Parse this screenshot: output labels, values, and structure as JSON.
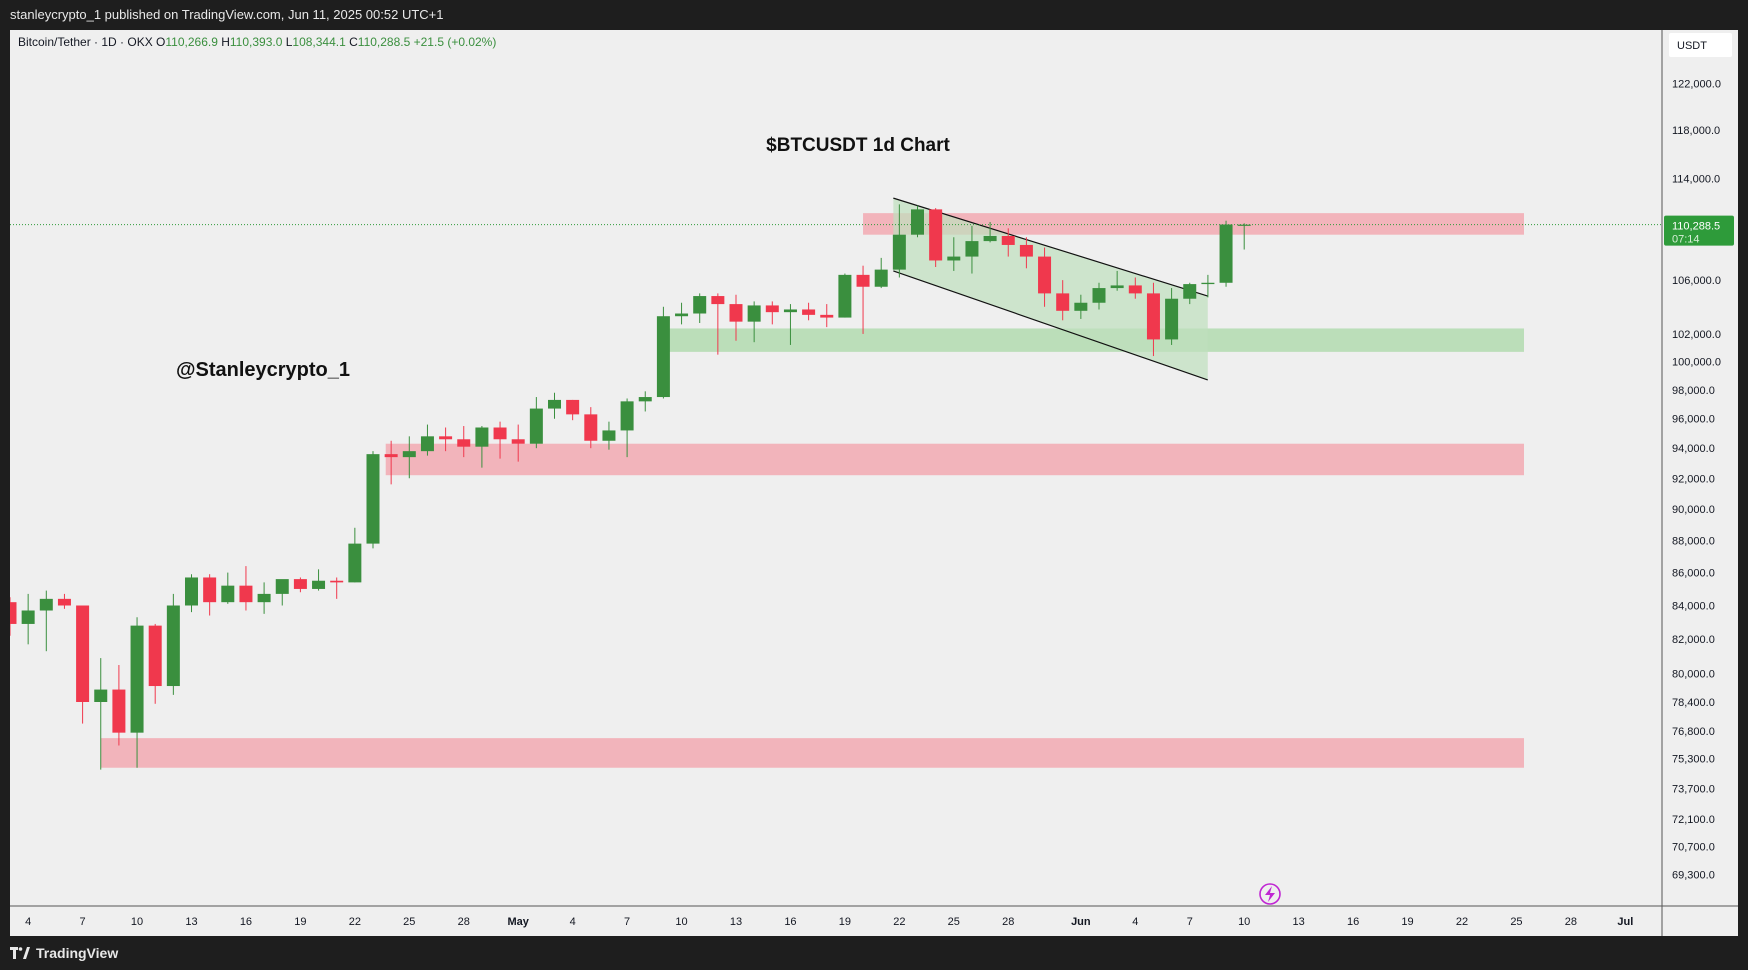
{
  "header": {
    "published_text": "stanleycrypto_1 published on TradingView.com, Jun 11, 2025 00:52 UTC+1"
  },
  "legend": {
    "symbol": "Bitcoin/Tether · 1D · OKX",
    "o_label": "O",
    "o_value": "110,266.9",
    "h_label": "H",
    "h_value": "110,393.0",
    "l_label": "L",
    "l_value": "108,344.1",
    "c_label": "C",
    "c_value": "110,288.5",
    "change": "+21.5 (+0.02%)"
  },
  "annotations": {
    "title": "$BTCUSDT 1d Chart",
    "author": "@Stanleycrypto_1"
  },
  "price_scale": {
    "currency": "USDT",
    "last_price_label": "110,288.5",
    "countdown": "07:14"
  },
  "footer": {
    "brand": "TradingView"
  },
  "icons": {
    "flash": "lightning-icon",
    "logo": "tradingview-logo-icon"
  },
  "colors": {
    "up": "#3a8f3e",
    "down": "#f0384d",
    "resistance_zone": "#f2a9b2",
    "support_zone": "#a9d8a7",
    "channel": "#bfe0bd",
    "last_price": "#2e9b3a"
  },
  "chart_data": {
    "type": "candlestick",
    "symbol": "BTCUSDT",
    "interval": "1D",
    "title": "$BTCUSDT 1d Chart",
    "x_tick_labels": [
      "4",
      "7",
      "10",
      "13",
      "16",
      "19",
      "22",
      "25",
      "28",
      "May",
      "4",
      "7",
      "10",
      "13",
      "16",
      "19",
      "22",
      "25",
      "28",
      "Jun",
      "4",
      "7",
      "10",
      "13",
      "16",
      "19",
      "22",
      "25",
      "28",
      "Jul"
    ],
    "y_tick_labels": [
      "122,000.0",
      "118,000.0",
      "114,000.0",
      "106,000.0",
      "102,000.0",
      "100,000.0",
      "98,000.0",
      "96,000.0",
      "94,000.0",
      "92,000.0",
      "90,000.0",
      "88,000.0",
      "86,000.0",
      "84,000.0",
      "82,000.0",
      "80,000.0",
      "78,400.0",
      "76,800.0",
      "75,300.0",
      "73,700.0",
      "72,100.0",
      "70,700.0",
      "69,300.0"
    ],
    "y_ticks": [
      122000,
      118000,
      114000,
      106000,
      102000,
      100000,
      98000,
      96000,
      94000,
      92000,
      90000,
      88000,
      86000,
      84000,
      82000,
      80000,
      78400,
      76800,
      75300,
      73700,
      72100,
      70700,
      69300
    ],
    "scale": "log",
    "start_date": "2025-04-03",
    "candles": [
      {
        "date": "2025-04-03",
        "o": 84200,
        "h": 84500,
        "l": 82200,
        "c": 82900
      },
      {
        "date": "2025-04-04",
        "o": 82900,
        "h": 84700,
        "l": 81700,
        "c": 83700
      },
      {
        "date": "2025-04-05",
        "o": 83700,
        "h": 84900,
        "l": 81300,
        "c": 84400
      },
      {
        "date": "2025-04-06",
        "o": 84400,
        "h": 84700,
        "l": 83800,
        "c": 84000
      },
      {
        "date": "2025-04-07",
        "o": 84000,
        "h": 84000,
        "l": 77200,
        "c": 78400
      },
      {
        "date": "2025-04-08",
        "o": 78400,
        "h": 80900,
        "l": 74700,
        "c": 79100
      },
      {
        "date": "2025-04-09",
        "o": 79100,
        "h": 80500,
        "l": 76000,
        "c": 76700
      },
      {
        "date": "2025-04-10",
        "o": 76700,
        "h": 83300,
        "l": 74800,
        "c": 82800
      },
      {
        "date": "2025-04-11",
        "o": 82800,
        "h": 82900,
        "l": 78300,
        "c": 79300
      },
      {
        "date": "2025-04-12",
        "o": 79300,
        "h": 84700,
        "l": 78800,
        "c": 84000
      },
      {
        "date": "2025-04-13",
        "o": 84000,
        "h": 85900,
        "l": 83600,
        "c": 85700
      },
      {
        "date": "2025-04-14",
        "o": 85700,
        "h": 85900,
        "l": 83400,
        "c": 84200
      },
      {
        "date": "2025-04-15",
        "o": 84200,
        "h": 86000,
        "l": 84100,
        "c": 85200
      },
      {
        "date": "2025-04-16",
        "o": 85200,
        "h": 86400,
        "l": 83700,
        "c": 84200
      },
      {
        "date": "2025-04-17",
        "o": 84200,
        "h": 85400,
        "l": 83500,
        "c": 84700
      },
      {
        "date": "2025-04-18",
        "o": 84700,
        "h": 85500,
        "l": 84000,
        "c": 85600
      },
      {
        "date": "2025-04-19",
        "o": 85600,
        "h": 85700,
        "l": 84800,
        "c": 85000
      },
      {
        "date": "2025-04-20",
        "o": 85000,
        "h": 86200,
        "l": 84900,
        "c": 85500
      },
      {
        "date": "2025-04-21",
        "o": 85500,
        "h": 85700,
        "l": 84400,
        "c": 85400
      },
      {
        "date": "2025-04-22",
        "o": 85400,
        "h": 88800,
        "l": 85400,
        "c": 87800
      },
      {
        "date": "2025-04-23",
        "o": 87800,
        "h": 93800,
        "l": 87500,
        "c": 93600
      },
      {
        "date": "2025-04-24",
        "o": 93600,
        "h": 94500,
        "l": 91600,
        "c": 93400
      },
      {
        "date": "2025-04-25",
        "o": 93400,
        "h": 94800,
        "l": 92000,
        "c": 93800
      },
      {
        "date": "2025-04-26",
        "o": 93800,
        "h": 95600,
        "l": 93500,
        "c": 94800
      },
      {
        "date": "2025-04-27",
        "o": 94800,
        "h": 95400,
        "l": 93800,
        "c": 94600
      },
      {
        "date": "2025-04-28",
        "o": 94600,
        "h": 95500,
        "l": 93400,
        "c": 94100
      },
      {
        "date": "2025-04-29",
        "o": 94100,
        "h": 95500,
        "l": 92700,
        "c": 95400
      },
      {
        "date": "2025-04-30",
        "o": 95400,
        "h": 95800,
        "l": 93300,
        "c": 94600
      },
      {
        "date": "2025-05-01",
        "o": 94600,
        "h": 95600,
        "l": 93100,
        "c": 94300
      },
      {
        "date": "2025-05-02",
        "o": 94300,
        "h": 97500,
        "l": 94000,
        "c": 96700
      },
      {
        "date": "2025-05-03",
        "o": 96700,
        "h": 97800,
        "l": 96000,
        "c": 97300
      },
      {
        "date": "2025-05-04",
        "o": 97300,
        "h": 97300,
        "l": 95900,
        "c": 96300
      },
      {
        "date": "2025-05-05",
        "o": 96300,
        "h": 96800,
        "l": 94000,
        "c": 94500
      },
      {
        "date": "2025-05-06",
        "o": 94500,
        "h": 95800,
        "l": 93900,
        "c": 95200
      },
      {
        "date": "2025-05-07",
        "o": 95200,
        "h": 97400,
        "l": 93400,
        "c": 97200
      },
      {
        "date": "2025-05-08",
        "o": 97200,
        "h": 97900,
        "l": 96500,
        "c": 97500
      },
      {
        "date": "2025-05-09",
        "o": 97500,
        "h": 104000,
        "l": 97400,
        "c": 103300
      },
      {
        "date": "2025-05-10",
        "o": 103300,
        "h": 104300,
        "l": 102700,
        "c": 103500
      },
      {
        "date": "2025-05-11",
        "o": 103500,
        "h": 105000,
        "l": 102800,
        "c": 104800
      },
      {
        "date": "2025-05-12",
        "o": 104800,
        "h": 105000,
        "l": 100500,
        "c": 104200
      },
      {
        "date": "2025-05-13",
        "o": 104200,
        "h": 104900,
        "l": 101500,
        "c": 102900
      },
      {
        "date": "2025-05-14",
        "o": 102900,
        "h": 104400,
        "l": 101400,
        "c": 104100
      },
      {
        "date": "2025-05-15",
        "o": 104100,
        "h": 104400,
        "l": 102700,
        "c": 103600
      },
      {
        "date": "2025-05-16",
        "o": 103600,
        "h": 104200,
        "l": 101200,
        "c": 103800
      },
      {
        "date": "2025-05-17",
        "o": 103800,
        "h": 104300,
        "l": 103000,
        "c": 103400
      },
      {
        "date": "2025-05-18",
        "o": 103400,
        "h": 104200,
        "l": 102500,
        "c": 103200
      },
      {
        "date": "2025-05-19",
        "o": 103200,
        "h": 106500,
        "l": 103200,
        "c": 106400
      },
      {
        "date": "2025-05-20",
        "o": 106400,
        "h": 107100,
        "l": 102000,
        "c": 105500
      },
      {
        "date": "2025-05-21",
        "o": 105500,
        "h": 107700,
        "l": 105400,
        "c": 106800
      },
      {
        "date": "2025-05-22",
        "o": 106800,
        "h": 111900,
        "l": 106200,
        "c": 109500
      },
      {
        "date": "2025-05-23",
        "o": 109500,
        "h": 111800,
        "l": 109300,
        "c": 111500
      },
      {
        "date": "2025-05-24",
        "o": 111500,
        "h": 111600,
        "l": 107000,
        "c": 107500
      },
      {
        "date": "2025-05-25",
        "o": 107500,
        "h": 109300,
        "l": 106700,
        "c": 107800
      },
      {
        "date": "2025-05-26",
        "o": 107800,
        "h": 110200,
        "l": 106500,
        "c": 109000
      },
      {
        "date": "2025-05-27",
        "o": 109000,
        "h": 110500,
        "l": 108900,
        "c": 109400
      },
      {
        "date": "2025-05-28",
        "o": 109400,
        "h": 110000,
        "l": 107800,
        "c": 108700
      },
      {
        "date": "2025-05-29",
        "o": 108700,
        "h": 109300,
        "l": 106900,
        "c": 107800
      },
      {
        "date": "2025-05-30",
        "o": 107800,
        "h": 108500,
        "l": 104000,
        "c": 105000
      },
      {
        "date": "2025-05-31",
        "o": 105000,
        "h": 106000,
        "l": 103000,
        "c": 103700
      },
      {
        "date": "2025-06-01",
        "o": 103700,
        "h": 104900,
        "l": 103100,
        "c": 104300
      },
      {
        "date": "2025-06-02",
        "o": 104300,
        "h": 105800,
        "l": 103800,
        "c": 105400
      },
      {
        "date": "2025-06-03",
        "o": 105400,
        "h": 106700,
        "l": 105200,
        "c": 105600
      },
      {
        "date": "2025-06-04",
        "o": 105600,
        "h": 106200,
        "l": 104600,
        "c": 105000
      },
      {
        "date": "2025-06-05",
        "o": 105000,
        "h": 105800,
        "l": 100400,
        "c": 101600
      },
      {
        "date": "2025-06-06",
        "o": 101600,
        "h": 105400,
        "l": 101200,
        "c": 104600
      },
      {
        "date": "2025-06-07",
        "o": 104600,
        "h": 105800,
        "l": 104200,
        "c": 105700
      },
      {
        "date": "2025-06-08",
        "o": 105700,
        "h": 106400,
        "l": 104700,
        "c": 105800
      },
      {
        "date": "2025-06-09",
        "o": 105800,
        "h": 110600,
        "l": 105500,
        "c": 110300
      },
      {
        "date": "2025-06-10",
        "o": 110266.9,
        "h": 110393,
        "l": 108344.1,
        "c": 110288.5
      }
    ],
    "zones": [
      {
        "kind": "resistance",
        "from": 109500,
        "to": 111200
      },
      {
        "kind": "support",
        "from": 100700,
        "to": 102400
      },
      {
        "kind": "resistance",
        "from": 92200,
        "to": 94300
      },
      {
        "kind": "resistance",
        "from": 74800,
        "to": 76400
      }
    ],
    "channel": {
      "upper": [
        [
          "2025-05-22",
          112400
        ],
        [
          "2025-06-07",
          104800
        ]
      ],
      "lower": [
        [
          "2025-05-22",
          106700
        ],
        [
          "2025-06-07",
          98700
        ]
      ]
    }
  }
}
